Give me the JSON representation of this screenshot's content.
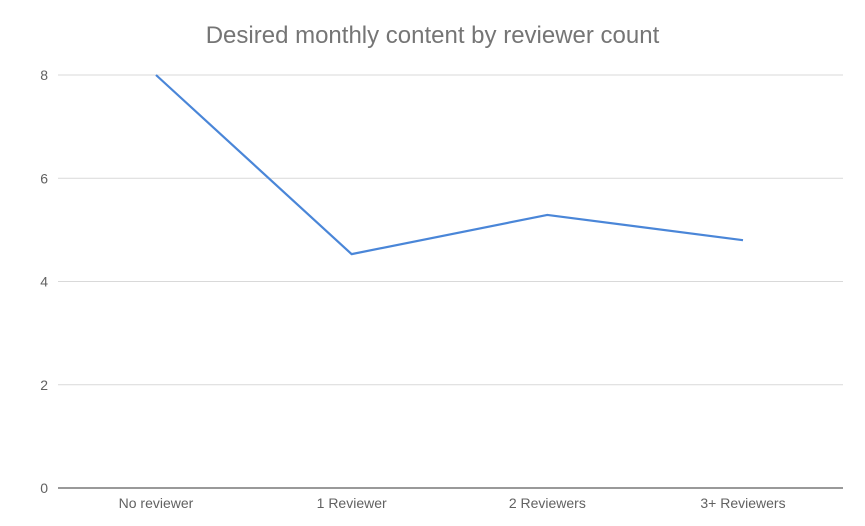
{
  "chart_data": {
    "type": "line",
    "title": "Desired monthly content by reviewer count",
    "xlabel": "",
    "ylabel": "",
    "categories": [
      "No reviewer",
      "1 Reviewer",
      "2 Reviewers",
      "3+ Reviewers"
    ],
    "series": [
      {
        "values": [
          8.0,
          4.53,
          5.29,
          4.8
        ],
        "color": "#4a86d8"
      }
    ],
    "ylim": [
      0,
      8
    ],
    "yticks": [
      0,
      2,
      4,
      6,
      8
    ],
    "grid": true,
    "legend": "none"
  }
}
